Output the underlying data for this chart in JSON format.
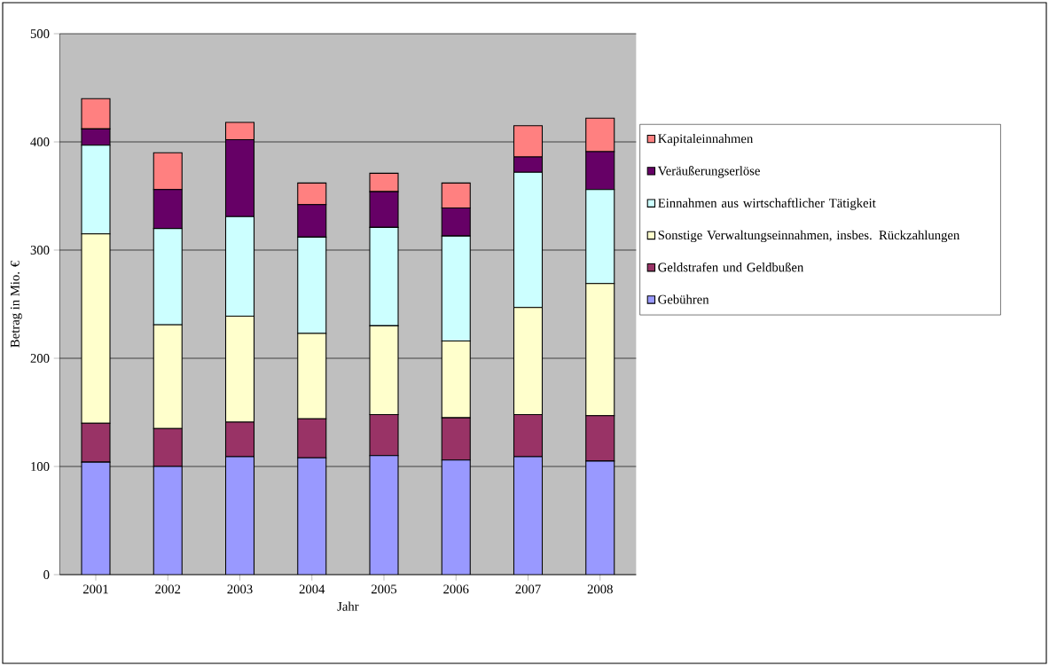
{
  "chart_data": {
    "type": "bar",
    "stacked": true,
    "xlabel": "Jahr",
    "ylabel": "Betrag in Mio. €",
    "categories": [
      "2001",
      "2002",
      "2003",
      "2004",
      "2005",
      "2006",
      "2007",
      "2008"
    ],
    "ylim": [
      0,
      500
    ],
    "yticks": [
      0,
      100,
      200,
      300,
      400,
      500
    ],
    "grid": "y",
    "legend": "right",
    "series": [
      {
        "name": "Gebühren",
        "color": "#9999ff",
        "values": [
          104,
          100,
          109,
          108,
          110,
          106,
          109,
          105
        ]
      },
      {
        "name": "Geldstrafen und Geldbußen",
        "color": "#993366",
        "values": [
          36,
          35,
          32,
          36,
          38,
          39,
          39,
          42
        ]
      },
      {
        "name": "Sonstige Verwaltungseinnahmen, insbes. Rückzahlungen",
        "color": "#ffffcc",
        "values": [
          175,
          96,
          98,
          79,
          82,
          71,
          99,
          122
        ]
      },
      {
        "name": "Einnahmen aus wirtschaftlicher Tätigkeit",
        "color": "#ccffff",
        "values": [
          82,
          89,
          92,
          89,
          91,
          97,
          125,
          87
        ]
      },
      {
        "name": "Veräußerungserlöse",
        "color": "#660066",
        "values": [
          15,
          36,
          71,
          30,
          33,
          26,
          14,
          35
        ]
      },
      {
        "name": "Kapitaleinnahmen",
        "color": "#ff8080",
        "values": [
          28,
          34,
          16,
          20,
          17,
          23,
          29,
          31
        ]
      }
    ]
  }
}
